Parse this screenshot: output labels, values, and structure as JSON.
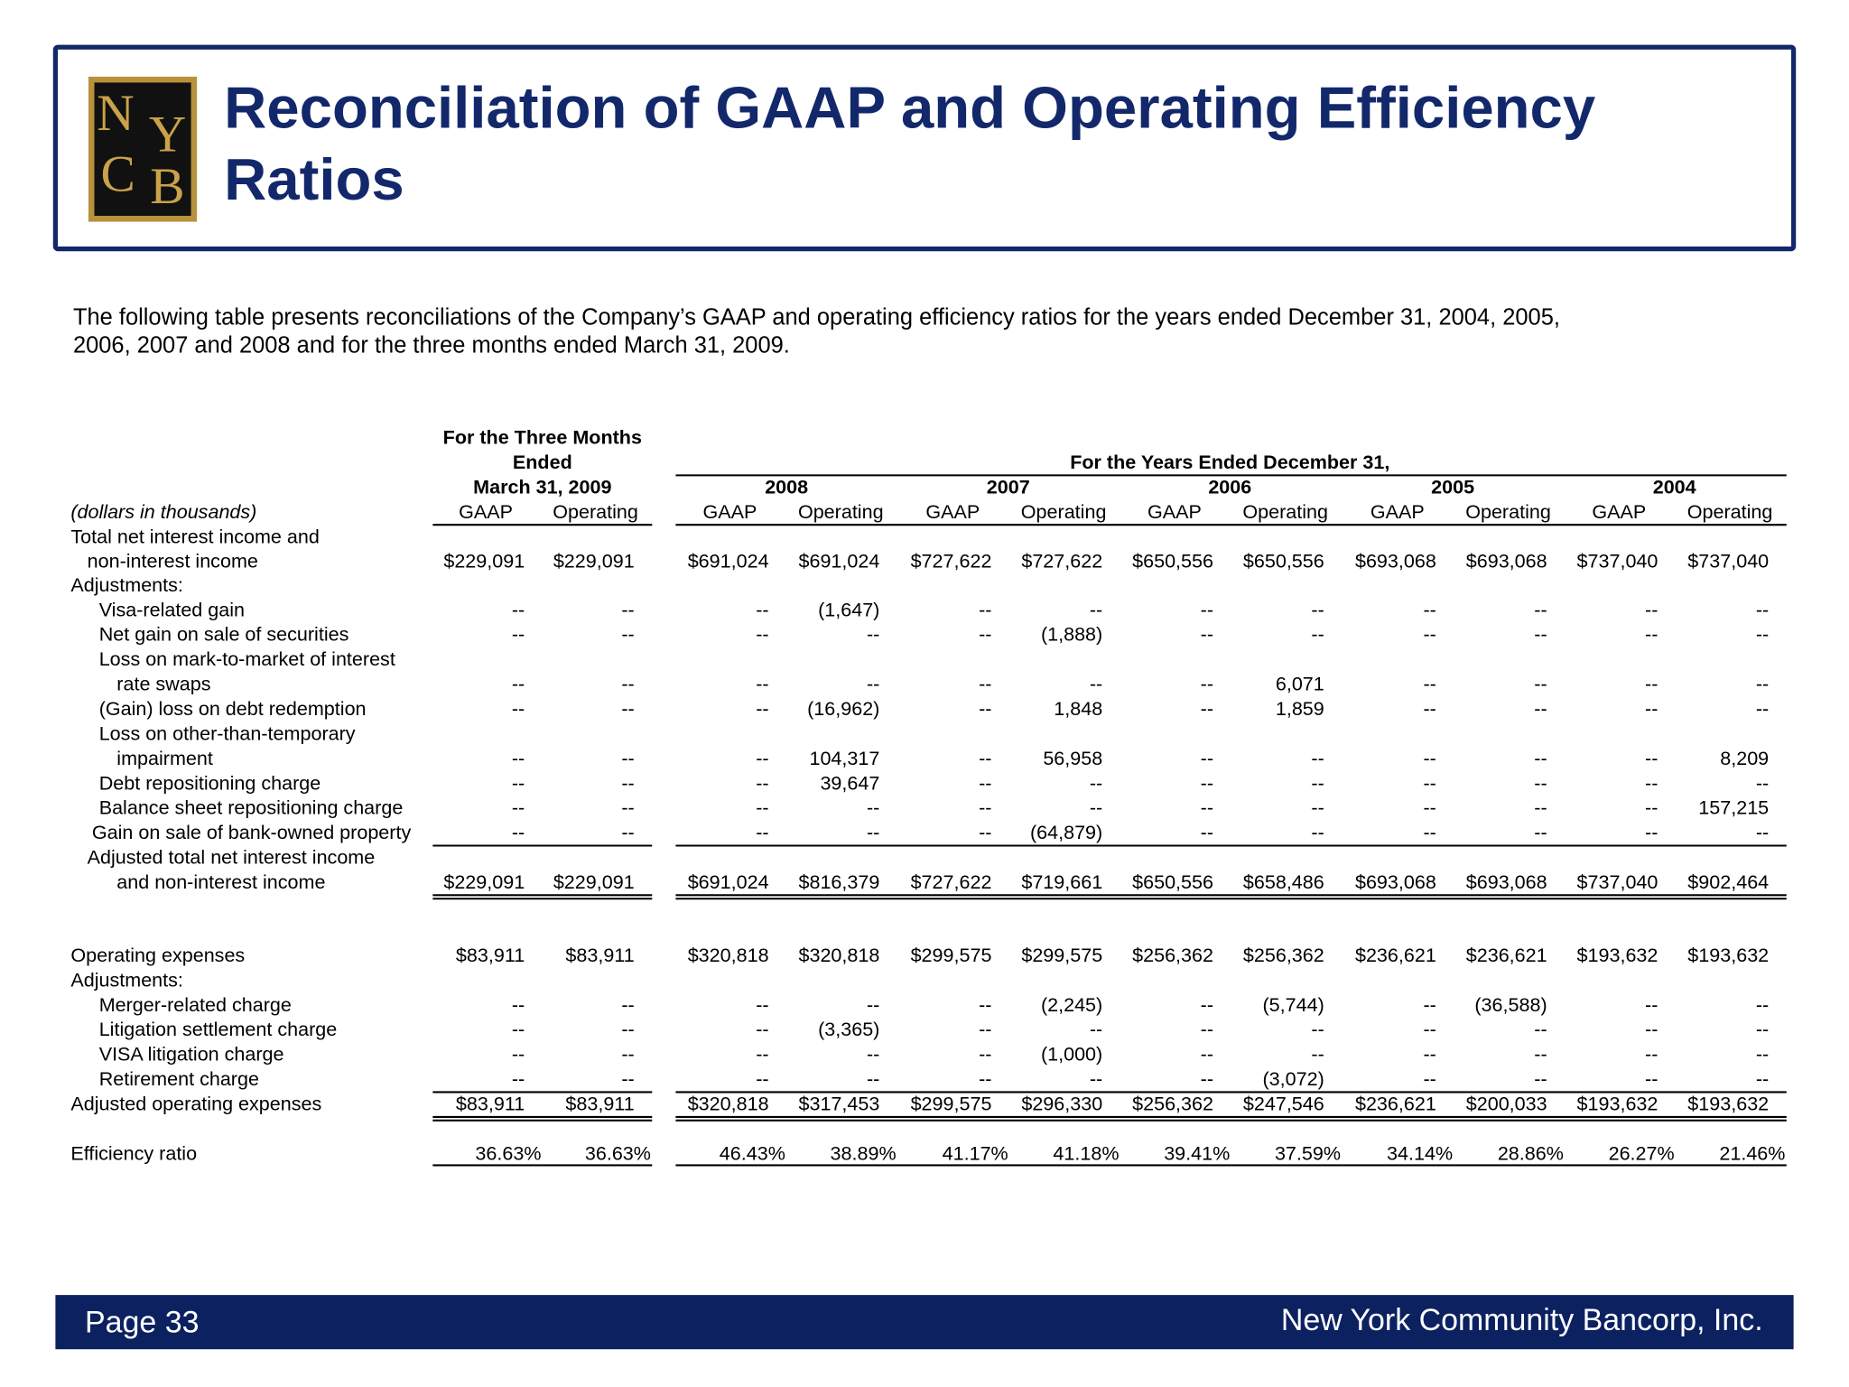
{
  "header": {
    "logo": [
      "N",
      "Y",
      "C",
      "B"
    ],
    "title": [
      "Reconciliation of GAAP and Operating Efficiency",
      "Ratios"
    ]
  },
  "intro": [
    "The following table presents reconciliations of the Company’s GAAP and operating efficiency ratios for the years ended December 31, 2004, 2005,",
    "2006, 2007 and 2008 and for the three months ended March 31, 2009."
  ],
  "table": {
    "unit_note": "(dollars in thousands)",
    "period_header": [
      "For the Three Months",
      "Ended",
      "March 31, 2009"
    ],
    "years_header": "For the Years Ended December 31,",
    "years": [
      "2008",
      "2007",
      "2006",
      "2005",
      "2004"
    ],
    "columns": [
      "GAAP",
      "Operating"
    ],
    "rows": [
      {
        "label": [
          "Total net interest income and",
          "non-interest income"
        ],
        "values": [
          "$229,091",
          "$229,091",
          "$691,024",
          "$691,024",
          "$727,622",
          "$727,622",
          "$650,556",
          "$650,556",
          "$693,068",
          "$693,068",
          "$737,040",
          "$737,040"
        ]
      },
      {
        "label": [
          "Adjustments:"
        ]
      },
      {
        "label": [
          "Visa-related gain"
        ],
        "values": [
          "--",
          "--",
          "--",
          "(1,647)",
          "--",
          "--",
          "--",
          "--",
          "--",
          "--",
          "--",
          "--"
        ]
      },
      {
        "label": [
          "Net gain on sale of securities"
        ],
        "values": [
          "--",
          "--",
          "--",
          "--",
          "--",
          "(1,888)",
          "--",
          "--",
          "--",
          "--",
          "--",
          "--"
        ]
      },
      {
        "label": [
          "Loss on mark-to-market of interest",
          "rate swaps"
        ],
        "values": [
          "--",
          "--",
          "--",
          "--",
          "--",
          "--",
          "--",
          "6,071",
          "--",
          "--",
          "--",
          "--"
        ]
      },
      {
        "label": [
          "(Gain) loss on debt redemption"
        ],
        "values": [
          "--",
          "--",
          "--",
          "(16,962)",
          "--",
          "1,848",
          "--",
          "1,859",
          "--",
          "--",
          "--",
          "--"
        ]
      },
      {
        "label": [
          "Loss on other-than-temporary",
          "impairment"
        ],
        "values": [
          "--",
          "--",
          "--",
          "104,317",
          "--",
          "56,958",
          "--",
          "--",
          "--",
          "--",
          "--",
          "8,209"
        ]
      },
      {
        "label": [
          "Debt repositioning charge"
        ],
        "values": [
          "--",
          "--",
          "--",
          "39,647",
          "--",
          "--",
          "--",
          "--",
          "--",
          "--",
          "--",
          "--"
        ]
      },
      {
        "label": [
          "Balance sheet repositioning charge"
        ],
        "values": [
          "--",
          "--",
          "--",
          "--",
          "--",
          "--",
          "--",
          "--",
          "--",
          "--",
          "--",
          "157,215"
        ]
      },
      {
        "label": [
          "Gain on sale of bank-owned property"
        ],
        "values": [
          "--",
          "--",
          "--",
          "--",
          "--",
          "(64,879)",
          "--",
          "--",
          "--",
          "--",
          "--",
          "--"
        ]
      },
      {
        "label": [
          "Adjusted total net interest income",
          "and non-interest income"
        ],
        "values": [
          "$229,091",
          "$229,091",
          "$691,024",
          "$816,379",
          "$727,622",
          "$719,661",
          "$650,556",
          "$658,486",
          "$693,068",
          "$693,068",
          "$737,040",
          "$902,464"
        ]
      },
      {
        "label": [
          "Operating expenses"
        ],
        "values": [
          "$83,911",
          "$83,911",
          "$320,818",
          "$320,818",
          "$299,575",
          "$299,575",
          "$256,362",
          "$256,362",
          "$236,621",
          "$236,621",
          "$193,632",
          "$193,632"
        ]
      },
      {
        "label": [
          "Adjustments:"
        ]
      },
      {
        "label": [
          "Merger-related charge"
        ],
        "values": [
          "--",
          "--",
          "--",
          "--",
          "--",
          "(2,245)",
          "--",
          "(5,744)",
          "--",
          "(36,588)",
          "--",
          "--"
        ]
      },
      {
        "label": [
          "Litigation settlement charge"
        ],
        "values": [
          "--",
          "--",
          "--",
          "(3,365)",
          "--",
          "--",
          "--",
          "--",
          "--",
          "--",
          "--",
          "--"
        ]
      },
      {
        "label": [
          "VISA litigation charge"
        ],
        "values": [
          "--",
          "--",
          "--",
          "--",
          "--",
          "(1,000)",
          "--",
          "--",
          "--",
          "--",
          "--",
          "--"
        ]
      },
      {
        "label": [
          "Retirement charge"
        ],
        "values": [
          "--",
          "--",
          "--",
          "--",
          "--",
          "--",
          "--",
          "(3,072)",
          "--",
          "--",
          "--",
          "--"
        ]
      },
      {
        "label": [
          "Adjusted operating expenses"
        ],
        "values": [
          "$83,911",
          "$83,911",
          "$320,818",
          "$317,453",
          "$299,575",
          "$296,330",
          "$256,362",
          "$247,546",
          "$236,621",
          "$200,033",
          "$193,632",
          "$193,632"
        ]
      },
      {
        "label": [
          "Efficiency ratio"
        ],
        "values": [
          "36.63%",
          "36.63%",
          "46.43%",
          "38.89%",
          "41.17%",
          "41.18%",
          "39.41%",
          "37.59%",
          "34.14%",
          "28.86%",
          "26.27%",
          "21.46%"
        ]
      }
    ]
  },
  "footer": {
    "page": "Page 33",
    "company": "New York Community Bancorp, Inc."
  }
}
